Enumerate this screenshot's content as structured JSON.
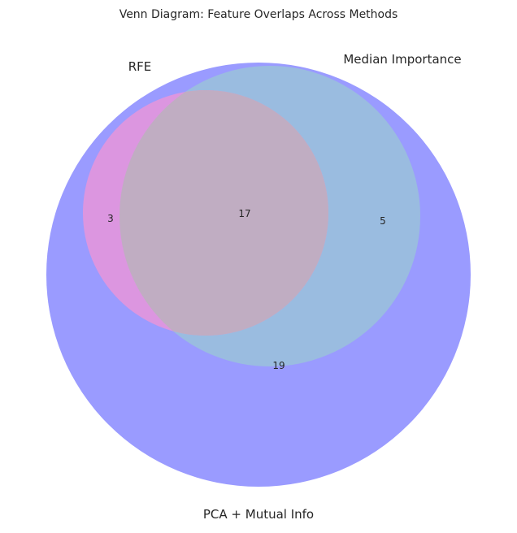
{
  "diagram": {
    "title": "Venn Diagram: Feature Overlaps Across Methods",
    "sets": {
      "a": {
        "name": "RFE",
        "color": "#dc96e0"
      },
      "b": {
        "name": "Median Importance",
        "color": "#9abce0"
      },
      "c": {
        "name": "PCA + Mutual Info",
        "color": "#9a9bff"
      }
    },
    "region_color_all_three": "#c0adc2",
    "region_counts": {
      "rfe_pca": "3",
      "all_three": "17",
      "median_pca": "5",
      "pca_only": "19"
    }
  }
}
